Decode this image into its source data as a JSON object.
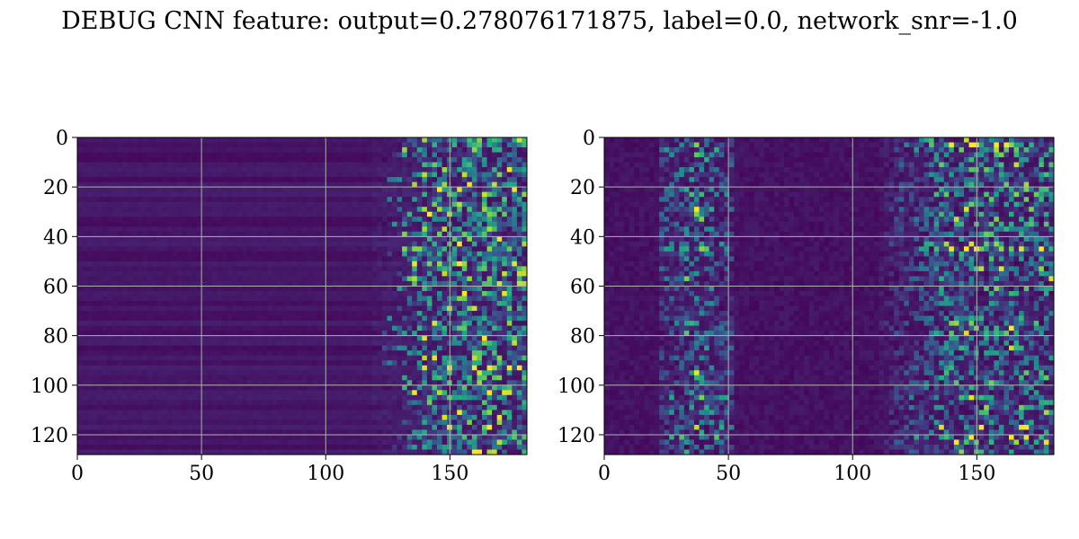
{
  "figure": {
    "title": "DEBUG CNN feature: output=0.278076171875, label=0.0, network_snr=-1.0"
  },
  "chart_data": [
    {
      "type": "heatmap",
      "colormap": "viridis",
      "grid": true,
      "xlim": [
        0,
        181
      ],
      "ylim": [
        128,
        0
      ],
      "x_ticks": [
        "0",
        "50",
        "100",
        "150"
      ],
      "y_ticks": [
        "0",
        "20",
        "40",
        "60",
        "80",
        "100",
        "120"
      ],
      "x_tick_values": [
        0,
        50,
        100,
        150
      ],
      "y_tick_values": [
        0,
        20,
        40,
        60,
        80,
        100,
        120
      ],
      "n_rows": 128,
      "n_cols": 181,
      "pattern": "dark with horizontal banding for columns 0-115; bright green-yellow noisy activity concentrated in columns ~120-181",
      "active_column_range": [
        120,
        181
      ]
    },
    {
      "type": "heatmap",
      "colormap": "viridis",
      "grid": true,
      "xlim": [
        0,
        181
      ],
      "ylim": [
        128,
        0
      ],
      "x_ticks": [
        "0",
        "50",
        "100",
        "150"
      ],
      "y_ticks": [
        "0",
        "20",
        "40",
        "60",
        "80",
        "100",
        "120"
      ],
      "x_tick_values": [
        0,
        50,
        100,
        150
      ],
      "y_tick_values": [
        0,
        20,
        40,
        60,
        80,
        100,
        120
      ],
      "n_rows": 128,
      "n_cols": 181,
      "pattern": "speckled activity around columns ~25-50 and ~115-181, darker between",
      "active_column_range": [
        [
          25,
          50
        ],
        [
          115,
          181
        ]
      ]
    }
  ]
}
